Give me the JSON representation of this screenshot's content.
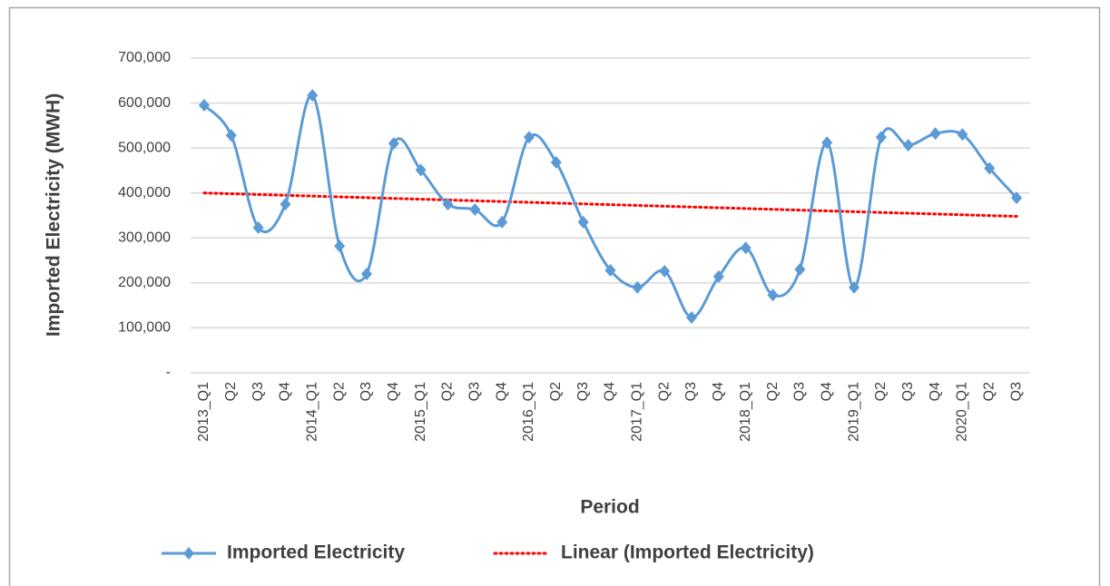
{
  "chart_data": {
    "type": "line",
    "x_label": "Period",
    "y_label": "Imported Electricity (MWH)",
    "categories": [
      "2013_Q1",
      "Q2",
      "Q3",
      "Q4",
      "2014_Q1",
      "Q2",
      "Q3",
      "Q4",
      "2015_Q1",
      "Q2",
      "Q3",
      "Q4",
      "2016_Q1",
      "Q2",
      "Q3",
      "Q4",
      "2017_Q1",
      "Q2",
      "Q3",
      "Q4",
      "2018_Q1",
      "Q2",
      "Q3",
      "Q4",
      "2019_Q1",
      "Q2",
      "Q3",
      "Q4",
      "2020_Q1",
      "Q2",
      "Q3"
    ],
    "series": [
      {
        "name": "Imported Electricity",
        "color": "#5b9bd5",
        "values": [
          595000,
          528000,
          323000,
          375000,
          617000,
          282000,
          220000,
          510000,
          451000,
          375000,
          363000,
          335000,
          524000,
          468000,
          335000,
          228000,
          190000,
          226000,
          123000,
          214000,
          278000,
          173000,
          230000,
          512000,
          190000,
          524000,
          506000,
          532000,
          530000,
          455000,
          389000
        ]
      }
    ],
    "trendline": {
      "name": "Linear (Imported Electricity)",
      "color": "#ff0000",
      "values": [
        400000,
        348000
      ]
    },
    "ylim": [
      0,
      700000
    ],
    "yticks": [
      {
        "value": 0,
        "label": "-"
      },
      {
        "value": 100000,
        "label": "100,000"
      },
      {
        "value": 200000,
        "label": "200,000"
      },
      {
        "value": 300000,
        "label": "300,000"
      },
      {
        "value": 400000,
        "label": "400,000"
      },
      {
        "value": 500000,
        "label": "500,000"
      },
      {
        "value": 600000,
        "label": "600,000"
      },
      {
        "value": 700000,
        "label": "700,000"
      }
    ],
    "grid": true,
    "legend": "bottom"
  }
}
